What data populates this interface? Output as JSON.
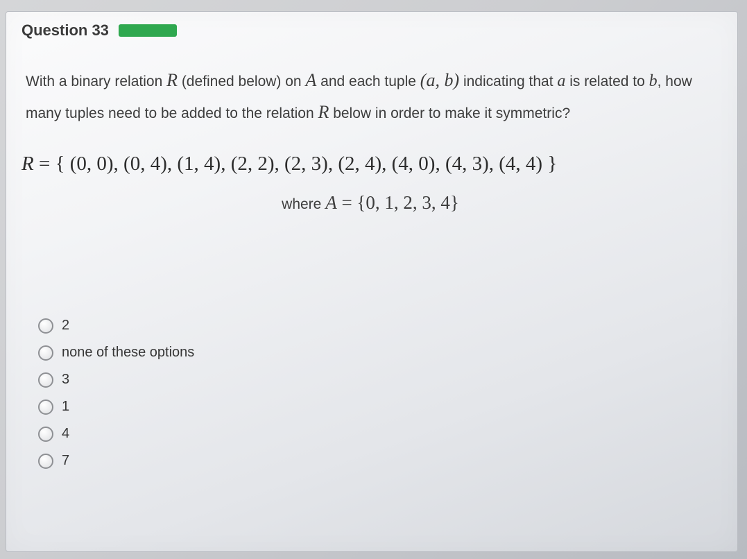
{
  "question": {
    "number_label": "Question 33",
    "prompt_html_parts": {
      "p1": "With a binary relation ",
      "R": "R",
      "p2": " (defined below) on ",
      "A": "A",
      "p3": " and each tuple ",
      "lp": "(",
      "a": "a",
      "comma": ", ",
      "b": "b",
      "rp": ")",
      "p4": " indicating that ",
      "a2": "a",
      "p5": " is related to ",
      "b2": "b",
      "p6": ", how many tuples need to be added to the relation ",
      "R2": "R",
      "p7": " below in order to make it symmetric?"
    },
    "relation_lhs": "R",
    "relation_eq": " = ",
    "relation_set": "{ (0, 0), (0, 4), (1, 4), (2, 2), (2, 3), (2, 4), (4, 0), (4, 3), (4, 4) }",
    "where_label": "where ",
    "where_A": "A",
    "where_eq": " = ",
    "where_set": "{0, 1, 2, 3, 4}"
  },
  "options": [
    {
      "label": "2"
    },
    {
      "label": "none of these options"
    },
    {
      "label": "3"
    },
    {
      "label": "1"
    },
    {
      "label": "4"
    },
    {
      "label": "7"
    }
  ],
  "colors": {
    "tag_green": "#2fa84f",
    "text": "#3d3d3d",
    "radio_border": "#8e9094",
    "card_bg_top": "#fbfbfc",
    "card_bg_bottom": "#d5d8dd",
    "page_bg_top": "#d5d6d8",
    "page_bg_bottom": "#b8bbc1"
  },
  "typography": {
    "question_number_size_pt": 22,
    "body_size_pt": 21,
    "math_size_pt": 26,
    "relation_size_pt": 29,
    "option_size_pt": 20
  }
}
